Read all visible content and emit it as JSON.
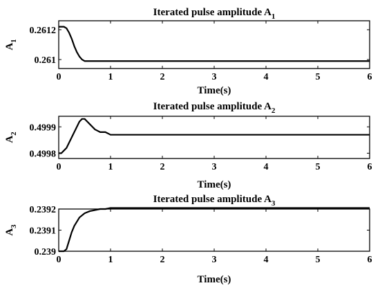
{
  "chart_data": [
    {
      "type": "line",
      "title": "Iterated pulse amplitude A",
      "title_sub": "1",
      "xlabel": "Time(s)",
      "ylabel": "A",
      "ylabel_sub": "1",
      "xlim": [
        0,
        6
      ],
      "ylim": [
        0.26094,
        0.26126
      ],
      "xticks": [
        0,
        1,
        2,
        3,
        4,
        5,
        6
      ],
      "xtick_labels": [
        "0",
        "1",
        "2",
        "3",
        "4",
        "5",
        "6"
      ],
      "yticks": [
        0.261,
        0.2612
      ],
      "ytick_labels": [
        "0.261",
        "0.2612"
      ],
      "grid": false,
      "series": [
        {
          "x": [
            0,
            0.1,
            0.15,
            0.2,
            0.25,
            0.3,
            0.35,
            0.4,
            0.45,
            0.5,
            0.55,
            0.6,
            0.8,
            1.0,
            2.0,
            3.0,
            4.0,
            5.0,
            6.0
          ],
          "y": [
            0.26122,
            0.26122,
            0.26121,
            0.26118,
            0.26114,
            0.26109,
            0.26105,
            0.26102,
            0.261,
            0.26099,
            0.26099,
            0.26099,
            0.26099,
            0.26099,
            0.26099,
            0.26099,
            0.26099,
            0.26099,
            0.26099
          ]
        }
      ]
    },
    {
      "type": "line",
      "title": "Iterated pulse amplitude A",
      "title_sub": "2",
      "xlabel": "Time(s)",
      "ylabel": "A",
      "ylabel_sub": "2",
      "xlim": [
        0,
        6
      ],
      "ylim": [
        0.49978,
        0.49994
      ],
      "xticks": [
        0,
        1,
        2,
        3,
        4,
        5,
        6
      ],
      "xtick_labels": [
        "0",
        "1",
        "2",
        "3",
        "4",
        "5",
        "6"
      ],
      "yticks": [
        0.4998,
        0.4999
      ],
      "ytick_labels": [
        "0.4998",
        "0.4999"
      ],
      "grid": false,
      "series": [
        {
          "x": [
            0,
            0.05,
            0.1,
            0.15,
            0.2,
            0.25,
            0.3,
            0.35,
            0.4,
            0.45,
            0.5,
            0.55,
            0.6,
            0.65,
            0.7,
            0.8,
            0.9,
            1.0,
            1.2,
            1.5,
            2.0,
            3.0,
            4.0,
            5.0,
            6.0
          ],
          "y": [
            0.4998,
            0.4998,
            0.49981,
            0.49982,
            0.49984,
            0.49986,
            0.49988,
            0.4999,
            0.49992,
            0.49993,
            0.49993,
            0.49992,
            0.49991,
            0.4999,
            0.49989,
            0.49988,
            0.49988,
            0.49987,
            0.49987,
            0.49987,
            0.49987,
            0.49987,
            0.49987,
            0.49987,
            0.49987
          ]
        }
      ]
    },
    {
      "type": "line",
      "title": "Iterated pulse amplitude A",
      "title_sub": "3",
      "xlabel": "Time(s)",
      "ylabel": "A",
      "ylabel_sub": "3",
      "xlim": [
        0,
        6
      ],
      "ylim": [
        0.239,
        0.2392
      ],
      "xticks": [
        0,
        1,
        2,
        3,
        4,
        5,
        6
      ],
      "xtick_labels": [
        "0",
        "1",
        "2",
        "3",
        "4",
        "5",
        "6"
      ],
      "yticks": [
        0.239,
        0.2391,
        0.2392
      ],
      "ytick_labels": [
        "0.239",
        "0.2391",
        "0.2392"
      ],
      "grid": false,
      "series": [
        {
          "x": [
            0,
            0.1,
            0.15,
            0.2,
            0.25,
            0.3,
            0.35,
            0.4,
            0.5,
            0.6,
            0.7,
            0.8,
            0.9,
            1.0,
            1.2,
            1.5,
            2.0,
            3.0,
            4.0,
            5.0,
            6.0
          ],
          "y": [
            0.239,
            0.239,
            0.23901,
            0.23905,
            0.23909,
            0.23912,
            0.23914,
            0.23916,
            0.23918,
            0.23919,
            0.239195,
            0.2392,
            0.2392,
            0.239205,
            0.239205,
            0.239205,
            0.239205,
            0.239205,
            0.239205,
            0.239205,
            0.239205
          ]
        }
      ]
    }
  ]
}
